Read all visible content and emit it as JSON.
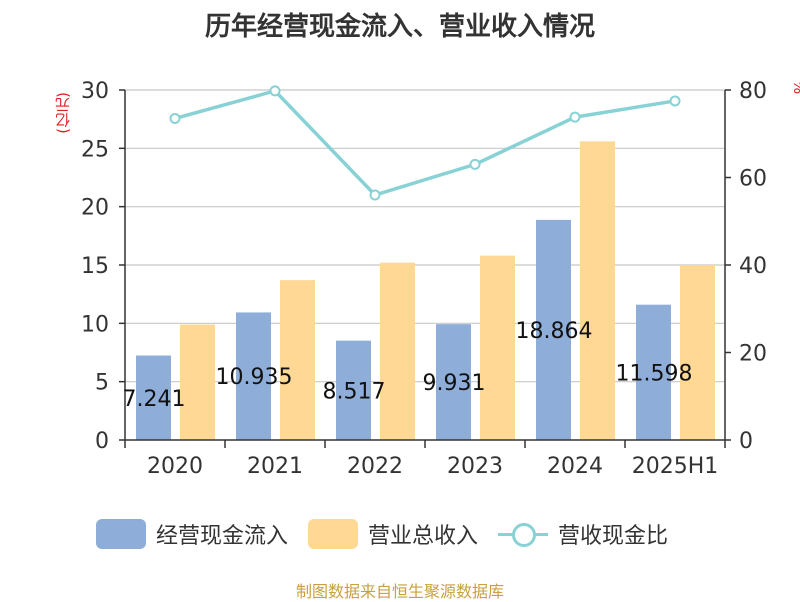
{
  "title": "历年经营现金流入、营业收入情况",
  "source": "制图数据来自恒生聚源数据库",
  "units": {
    "left": "(亿元)",
    "right": "%"
  },
  "legend": {
    "cash_inflow": "经营现金流入",
    "revenue": "营业总收入",
    "ratio": "营收现金比"
  },
  "colors": {
    "cash_inflow": "#8eadd9",
    "revenue": "#fed894",
    "ratio": "#88d2d6",
    "unit_label": "#e02020",
    "source": "#c8a040"
  },
  "chart_data": {
    "type": "bar",
    "categories": [
      "2020",
      "2021",
      "2022",
      "2023",
      "2024",
      "2025H1"
    ],
    "series": [
      {
        "name": "经营现金流入",
        "type": "bar",
        "axis": "left",
        "values": [
          7.241,
          10.935,
          8.517,
          9.931,
          18.864,
          11.598
        ],
        "labels": [
          "7.241",
          "10.935",
          "8.517",
          "9.931",
          "18.864",
          "11.598"
        ]
      },
      {
        "name": "营业总收入",
        "type": "bar",
        "axis": "left",
        "values": [
          9.9,
          13.7,
          15.2,
          15.8,
          25.6,
          15.0
        ]
      },
      {
        "name": "营收现金比",
        "type": "line",
        "axis": "right",
        "values": [
          73.5,
          79.8,
          56.0,
          63.0,
          73.8,
          77.5
        ]
      }
    ],
    "y_left": {
      "min": 0,
      "max": 30,
      "ticks": [
        0,
        5,
        10,
        15,
        20,
        25,
        30
      ],
      "label": "(亿元)"
    },
    "y_right": {
      "min": 0,
      "max": 80,
      "ticks": [
        0,
        20,
        40,
        60,
        80
      ],
      "label": "%"
    },
    "grid": true,
    "legend_position": "bottom"
  }
}
